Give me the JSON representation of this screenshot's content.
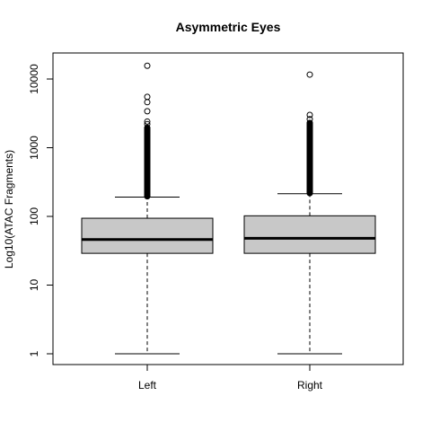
{
  "chart_data": {
    "type": "boxplot",
    "title": "Asymmetric Eyes",
    "xlabel": "",
    "ylabel": "Log10(ATAC Fragments)",
    "yscale": "log",
    "ylim": [
      0.7,
      22000
    ],
    "yticks": [
      1,
      10,
      100,
      1000,
      10000
    ],
    "ytick_labels": [
      "1",
      "10",
      "100",
      "1000",
      "10000"
    ],
    "categories": [
      "Left",
      "Right"
    ],
    "box_fill": "#c8c8c8",
    "boxes": [
      {
        "label": "Left",
        "whisker_low": 1,
        "q1": 29,
        "median": 46,
        "q3": 94,
        "whisker_high": 191,
        "outlier_band": [
          196,
          1950
        ],
        "outliers": [
          15600,
          5500,
          4600,
          3400,
          2400,
          2200
        ]
      },
      {
        "label": "Right",
        "whisker_low": 1,
        "q1": 29,
        "median": 48,
        "q3": 102,
        "whisker_high": 214,
        "outlier_band": [
          218,
          2300
        ],
        "outliers": [
          11600,
          3000,
          2600
        ]
      }
    ]
  }
}
